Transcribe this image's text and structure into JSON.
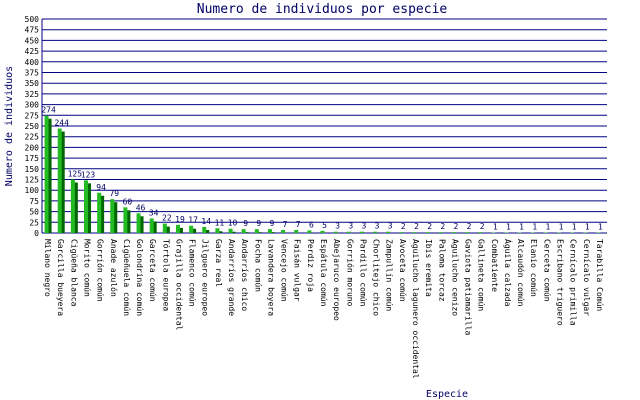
{
  "chart_data": {
    "type": "bar",
    "title": "Numero de individuos por especie",
    "xlabel": "Especie",
    "ylabel": "Numero de individuos",
    "categories": [
      "Milano negro",
      "Garcilla bueyera",
      "Cigüeña blanca",
      "Morito común",
      "Gorrión común",
      "Anade azulón",
      "Cigüeñuela común",
      "Golondrina común",
      "Garceta común",
      "Tórtola europea",
      "Grajilla occidental",
      "Flamenco común",
      "Jilguero europeo",
      "Garza real",
      "Andarríos grande",
      "Andarríos chico",
      "Focha común",
      "Lavandera boyera",
      "Vencejo común",
      "Faisán vulgar",
      "Perdiz roja",
      "Espátula común",
      "Abejaruco europeo",
      "Gorrión moruno",
      "Pardillo común",
      "Chorlitejo chico",
      "Zampullín común",
      "Avoceta común",
      "Aguilucho lagunero occidental",
      "Ibis eremita",
      "Paloma torcaz",
      "Aguilucho cenizo",
      "Gaviota patiamarilla",
      "Gallineta común",
      "Combatiente",
      "Águila calzada",
      "Alcaudón común",
      "Elanio común",
      "Cerceta común",
      "Escribano triguero",
      "Cernícalo primilla",
      "Cernícalo vulgar",
      "Tarabilla Común"
    ],
    "values": [
      274,
      244,
      125,
      123,
      94,
      79,
      60,
      46,
      34,
      22,
      19,
      17,
      14,
      11,
      10,
      9,
      9,
      9,
      7,
      7,
      6,
      5,
      3,
      3,
      3,
      3,
      3,
      2,
      2,
      2,
      2,
      2,
      2,
      2,
      1,
      1,
      1,
      1,
      1,
      1,
      1,
      1,
      1
    ],
    "color": "#22bb22",
    "ylim": [
      0,
      500
    ],
    "yticks": [
      0,
      25,
      50,
      75,
      100,
      125,
      150,
      175,
      200,
      225,
      250,
      275,
      300,
      325,
      350,
      375,
      400,
      425,
      450,
      475,
      500
    ],
    "grid": true
  }
}
